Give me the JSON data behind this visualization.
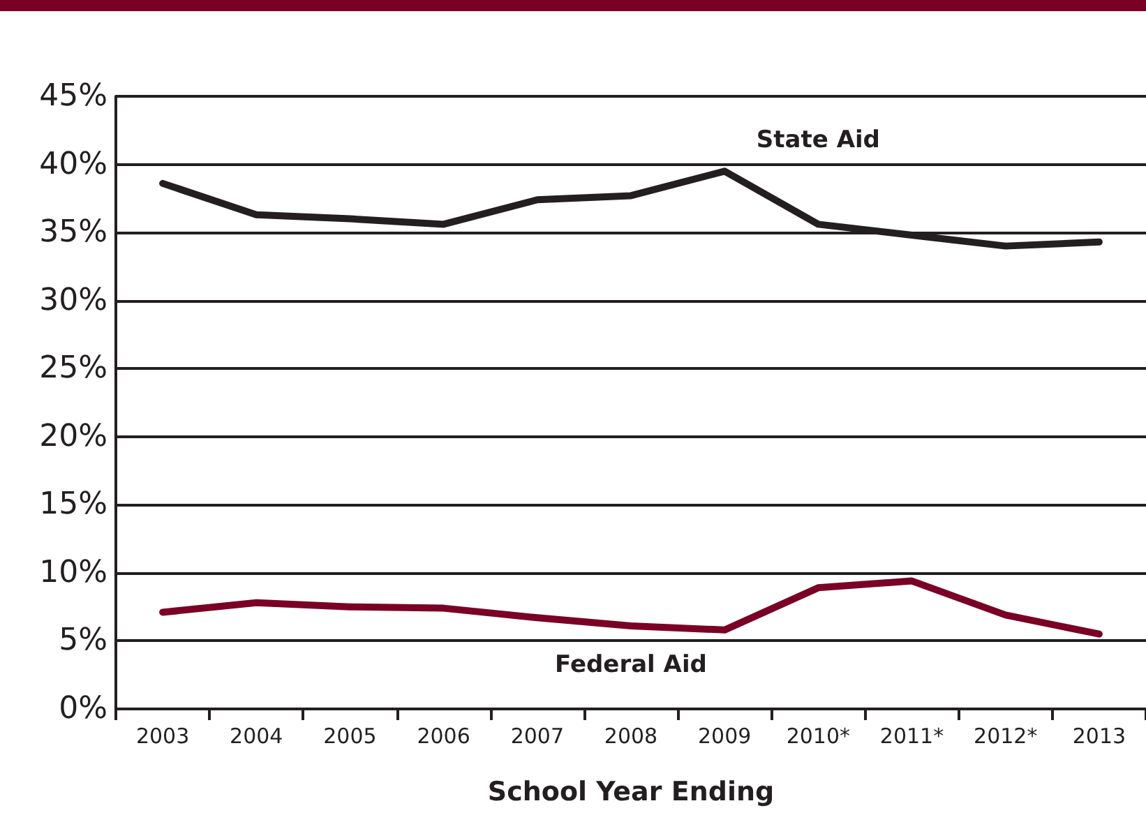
{
  "chart_data": {
    "type": "line",
    "xlabel": "School Year Ending",
    "categories": [
      "2003",
      "2004",
      "2005",
      "2006",
      "2007",
      "2008",
      "2009",
      "2010*",
      "2011*",
      "2012*",
      "2013"
    ],
    "series": [
      {
        "name": "State Aid",
        "color": "#231f20",
        "values": [
          38.6,
          36.3,
          36.0,
          35.6,
          37.4,
          37.7,
          39.5,
          35.6,
          34.8,
          34.0,
          34.3
        ]
      },
      {
        "name": "Federal Aid",
        "color": "#7a0026",
        "values": [
          7.1,
          7.8,
          7.5,
          7.4,
          6.7,
          6.1,
          5.8,
          8.9,
          9.4,
          6.9,
          5.5
        ]
      }
    ],
    "ylim": [
      0,
      45
    ],
    "yticks": [
      {
        "value": 0,
        "label": "0%"
      },
      {
        "value": 5,
        "label": "5%"
      },
      {
        "value": 10,
        "label": "10%"
      },
      {
        "value": 15,
        "label": "15%"
      },
      {
        "value": 20,
        "label": "20%"
      },
      {
        "value": 25,
        "label": "25%"
      },
      {
        "value": 30,
        "label": "30%"
      },
      {
        "value": 35,
        "label": "35%"
      },
      {
        "value": 40,
        "label": "40%"
      },
      {
        "value": 45,
        "label": "45%"
      }
    ],
    "grid": "y",
    "legend": false,
    "marker": "none",
    "line_style": "solid"
  }
}
